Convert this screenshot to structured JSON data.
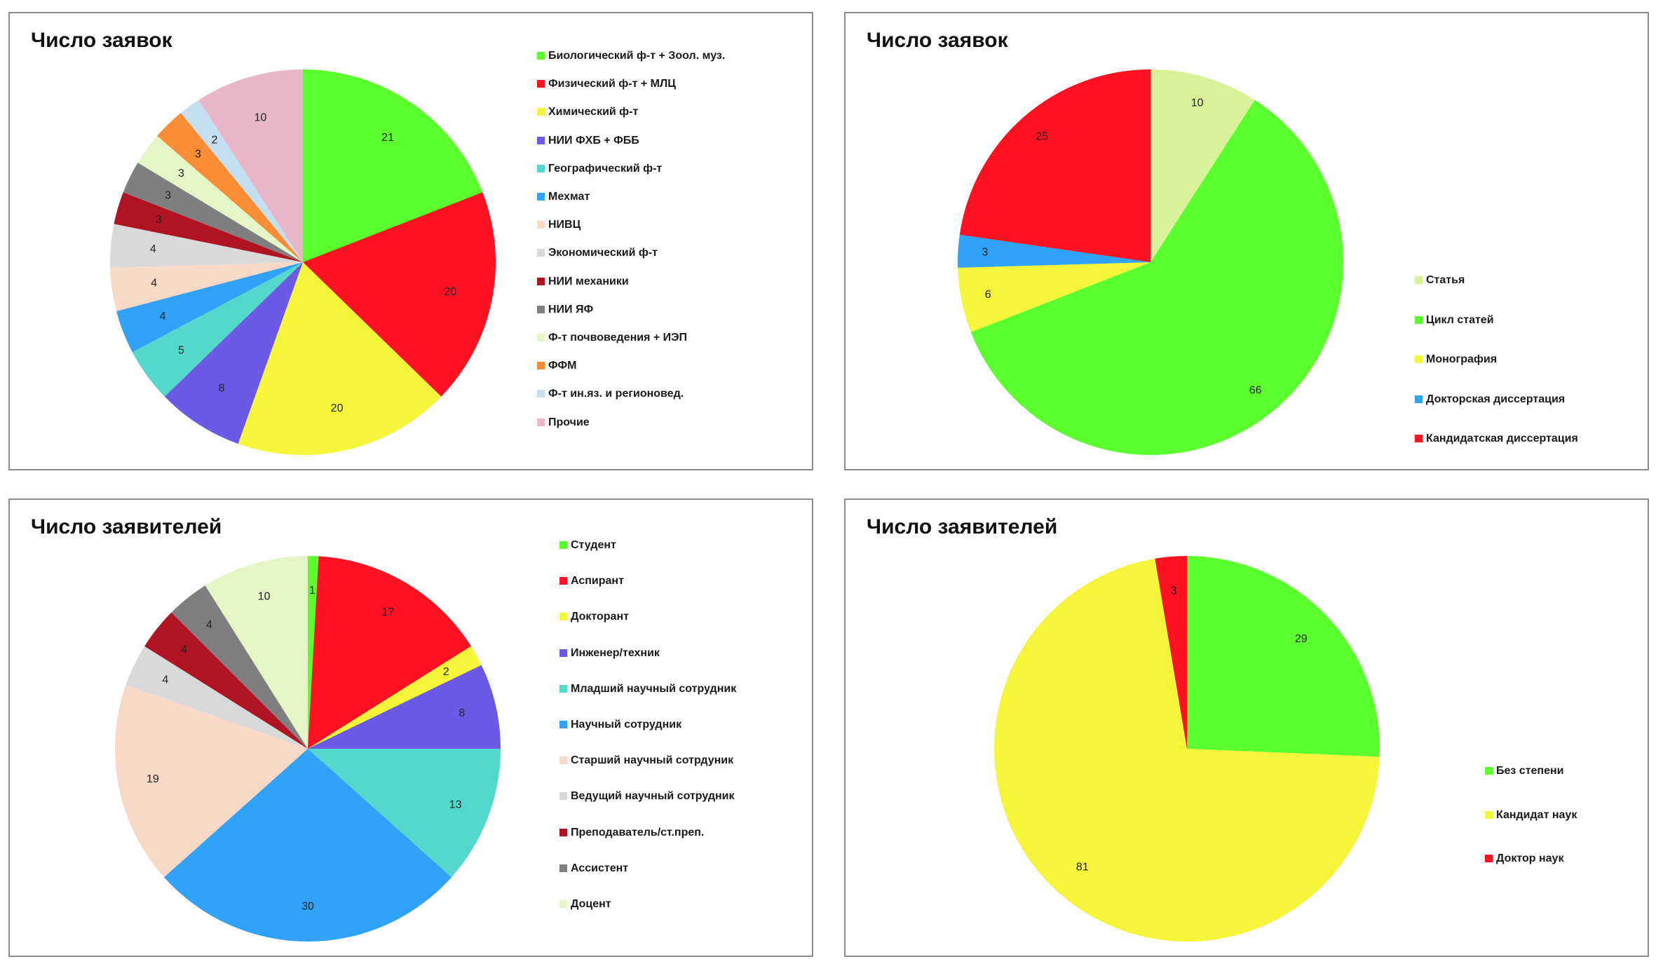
{
  "chart_data": [
    {
      "type": "pie",
      "title": "Число заявок",
      "categories": [
        "Биологический ф-т + Зоол. муз.",
        "Физический ф-т + МЛЦ",
        "Химический ф-т",
        "НИИ ФХБ + ФББ",
        "Географический ф-т",
        "Мехмат",
        "НИВЦ",
        "Экономический ф-т",
        "НИИ механики",
        "НИИ ЯФ",
        "Ф-т почвоведения + ИЭП",
        "ФФМ",
        "Ф-т ин.яз. и регионовед.",
        "Прочие"
      ],
      "values": [
        21,
        20,
        20,
        8,
        5,
        4,
        4,
        4,
        3,
        3,
        3,
        3,
        2,
        10
      ],
      "value_labels": [
        "21",
        "20",
        "20",
        "8",
        "5",
        "4",
        "4",
        "4",
        "3",
        "3",
        "3",
        "3",
        "2",
        "10"
      ],
      "colors": [
        "#5cff2e",
        "#ff1122",
        "#f5f53a",
        "#6c5ae6",
        "#55d8cc",
        "#30a2f8",
        "#f8d8c6",
        "#d9d9d9",
        "#b01422",
        "#7f7f7f",
        "#e6f5c6",
        "#f98d35",
        "#c3dff0",
        "#e8b7ca"
      ],
      "legend": "right"
    },
    {
      "type": "pie",
      "title": "Число заявок",
      "categories": [
        "Статья",
        "Цикл статей",
        "Монография",
        "Докторская диссертация",
        "Кандидатская диссертация"
      ],
      "values": [
        10,
        66,
        6,
        3,
        25
      ],
      "value_labels": [
        "10",
        "66",
        "6",
        "3",
        "25"
      ],
      "colors": [
        "#d9f29a",
        "#5cff2e",
        "#f5f53a",
        "#30a2f8",
        "#ff1122"
      ],
      "legend": "right"
    },
    {
      "type": "pie",
      "title": "Число заявителей",
      "categories": [
        "Студент",
        "Аспирант",
        "Докторант",
        "Инженер/техник",
        "Младший научный сотрудник",
        "Научный сотрудник",
        "Старший научный сотрдуник",
        "Ведущий научный сотрудник",
        "Преподаватель/ст.преп.",
        "Ассистент",
        "Доцент"
      ],
      "values": [
        1,
        17,
        2,
        8,
        13,
        30,
        19,
        4,
        4,
        4,
        10
      ],
      "value_labels": [
        "1",
        "17",
        "2",
        "8",
        "13",
        "30",
        "19",
        "4",
        "4",
        "4",
        "10"
      ],
      "colors": [
        "#5cff2e",
        "#ff1122",
        "#f5f53a",
        "#6c5ae6",
        "#55d8cc",
        "#30a2f8",
        "#f8d8c6",
        "#d9d9d9",
        "#b01422",
        "#7f7f7f",
        "#e6f5c6"
      ],
      "legend": "right"
    },
    {
      "type": "pie",
      "title": "Число заявителей",
      "categories": [
        "Без степени",
        "Кандидат наук",
        "Доктор наук"
      ],
      "values": [
        29,
        81,
        3
      ],
      "value_labels": [
        "29",
        "81",
        "3"
      ],
      "colors": [
        "#5cff2e",
        "#f5f53a",
        "#ff1122"
      ],
      "legend": "right"
    }
  ]
}
